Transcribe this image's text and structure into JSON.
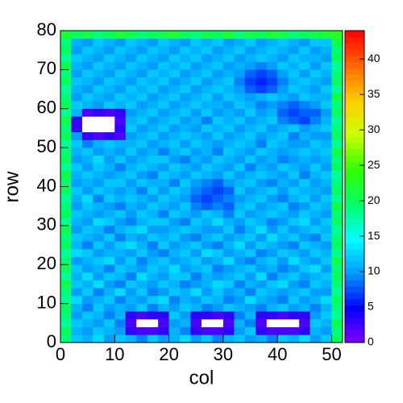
{
  "chart_data": {
    "type": "heatmap",
    "x_label": "col",
    "y_label": "row",
    "xlim": [
      0,
      52
    ],
    "ylim": [
      0,
      80
    ],
    "zlim": [
      0,
      44
    ],
    "xticks": [
      0,
      10,
      20,
      30,
      40,
      50
    ],
    "yticks": [
      0,
      10,
      20,
      30,
      40,
      50,
      60,
      70,
      80
    ],
    "zticks": [
      0,
      5,
      10,
      15,
      20,
      25,
      30,
      35,
      40
    ],
    "palette": [
      "#8000ff",
      "#0000ff",
      "#0099ff",
      "#00ffff",
      "#00ff66",
      "#33ff00",
      "#ccff00",
      "#ffcc00",
      "#ff6600",
      "#ff0000"
    ],
    "values": [
      [
        19,
        12,
        11,
        13,
        10,
        12,
        11,
        9,
        12,
        10,
        11,
        13,
        10,
        12,
        9,
        11,
        12,
        10,
        11,
        9,
        12,
        11,
        13,
        10,
        12,
        20
      ],
      [
        20,
        11,
        10,
        12,
        11,
        10,
        3,
        2,
        2,
        3,
        11,
        9,
        3,
        2,
        2,
        3,
        10,
        12,
        3,
        2,
        2,
        2,
        3,
        11,
        10,
        19
      ],
      [
        18,
        12,
        11,
        10,
        12,
        9,
        2,
        0,
        0,
        2,
        10,
        11,
        2,
        0,
        0,
        2,
        11,
        9,
        2,
        0,
        0,
        0,
        2,
        12,
        11,
        21
      ],
      [
        19,
        10,
        12,
        11,
        9,
        11,
        3,
        2,
        3,
        3,
        12,
        10,
        3,
        3,
        2,
        3,
        9,
        11,
        3,
        3,
        2,
        3,
        3,
        10,
        12,
        18
      ],
      [
        20,
        11,
        9,
        12,
        10,
        11,
        10,
        12,
        9,
        11,
        10,
        12,
        11,
        9,
        10,
        12,
        11,
        10,
        9,
        11,
        12,
        10,
        11,
        9,
        11,
        19
      ],
      [
        18,
        13,
        10,
        11,
        12,
        9,
        11,
        10,
        12,
        13,
        9,
        11,
        10,
        12,
        11,
        9,
        10,
        13,
        11,
        10,
        9,
        12,
        10,
        11,
        13,
        20
      ],
      [
        19,
        10,
        12,
        9,
        11,
        13,
        10,
        12,
        9,
        10,
        12,
        11,
        13,
        10,
        12,
        10,
        11,
        9,
        12,
        11,
        10,
        11,
        12,
        10,
        10,
        18
      ],
      [
        21,
        12,
        11,
        13,
        10,
        9,
        12,
        11,
        10,
        12,
        11,
        9,
        10,
        11,
        13,
        12,
        9,
        11,
        10,
        12,
        13,
        10,
        9,
        12,
        11,
        19
      ],
      [
        18,
        11,
        13,
        10,
        12,
        11,
        9,
        13,
        11,
        10,
        12,
        12,
        9,
        11,
        10,
        11,
        12,
        10,
        13,
        9,
        11,
        12,
        10,
        11,
        12,
        20
      ],
      [
        20,
        12,
        10,
        11,
        9,
        12,
        11,
        10,
        12,
        11,
        13,
        10,
        11,
        12,
        9,
        10,
        11,
        12,
        10,
        11,
        9,
        10,
        12,
        13,
        10,
        19
      ],
      [
        19,
        10,
        11,
        12,
        13,
        10,
        12,
        9,
        11,
        12,
        10,
        11,
        12,
        10,
        11,
        13,
        10,
        9,
        11,
        12,
        10,
        13,
        11,
        10,
        12,
        21
      ],
      [
        18,
        13,
        12,
        10,
        11,
        11,
        10,
        12,
        10,
        9,
        11,
        12,
        10,
        13,
        12,
        10,
        11,
        12,
        9,
        10,
        12,
        11,
        10,
        12,
        11,
        18
      ],
      [
        20,
        11,
        9,
        12,
        10,
        12,
        13,
        11,
        9,
        12,
        10,
        11,
        12,
        10,
        9,
        11,
        13,
        10,
        12,
        11,
        10,
        9,
        12,
        11,
        10,
        20
      ],
      [
        19,
        12,
        11,
        10,
        12,
        9,
        11,
        10,
        12,
        11,
        12,
        10,
        9,
        11,
        12,
        10,
        11,
        12,
        10,
        13,
        11,
        12,
        10,
        9,
        12,
        19
      ],
      [
        21,
        10,
        12,
        11,
        9,
        11,
        12,
        13,
        10,
        10,
        11,
        12,
        11,
        10,
        10,
        12,
        9,
        11,
        13,
        10,
        12,
        10,
        11,
        12,
        11,
        18
      ],
      [
        18,
        11,
        10,
        13,
        12,
        10,
        9,
        11,
        12,
        12,
        10,
        9,
        12,
        11,
        13,
        11,
        10,
        12,
        11,
        9,
        10,
        12,
        13,
        10,
        12,
        20
      ],
      [
        20,
        12,
        11,
        10,
        11,
        12,
        10,
        12,
        11,
        9,
        12,
        11,
        10,
        12,
        11,
        9,
        12,
        10,
        11,
        12,
        11,
        10,
        12,
        11,
        10,
        19
      ],
      [
        19,
        10,
        12,
        11,
        10,
        9,
        11,
        10,
        12,
        11,
        10,
        12,
        9,
        8,
        9,
        8,
        11,
        12,
        10,
        11,
        12,
        9,
        10,
        12,
        11,
        21
      ],
      [
        18,
        11,
        13,
        9,
        12,
        11,
        12,
        11,
        10,
        12,
        11,
        10,
        8,
        7,
        8,
        9,
        10,
        11,
        12,
        10,
        9,
        11,
        12,
        10,
        12,
        18
      ],
      [
        20,
        12,
        10,
        12,
        11,
        10,
        11,
        9,
        12,
        10,
        12,
        11,
        9,
        8,
        7,
        8,
        12,
        10,
        11,
        12,
        10,
        12,
        11,
        11,
        10,
        20
      ],
      [
        19,
        10,
        11,
        10,
        12,
        12,
        10,
        12,
        11,
        11,
        9,
        12,
        10,
        9,
        8,
        10,
        11,
        12,
        10,
        9,
        11,
        10,
        12,
        10,
        11,
        19
      ],
      [
        21,
        11,
        12,
        11,
        10,
        11,
        12,
        10,
        9,
        12,
        11,
        10,
        12,
        11,
        10,
        12,
        10,
        11,
        12,
        11,
        10,
        12,
        9,
        11,
        12,
        18
      ],
      [
        18,
        12,
        10,
        12,
        11,
        9,
        11,
        12,
        11,
        10,
        12,
        11,
        10,
        12,
        11,
        10,
        12,
        9,
        11,
        10,
        12,
        11,
        10,
        12,
        10,
        20
      ],
      [
        20,
        10,
        11,
        13,
        10,
        12,
        10,
        11,
        12,
        12,
        10,
        9,
        11,
        10,
        12,
        11,
        10,
        12,
        10,
        11,
        9,
        10,
        11,
        10,
        11,
        19
      ],
      [
        19,
        11,
        12,
        10,
        11,
        10,
        12,
        10,
        11,
        9,
        11,
        12,
        10,
        11,
        9,
        12,
        11,
        10,
        12,
        11,
        10,
        11,
        12,
        11,
        12,
        21
      ],
      [
        18,
        12,
        9,
        11,
        12,
        11,
        11,
        12,
        10,
        11,
        12,
        10,
        12,
        11,
        10,
        11,
        12,
        11,
        9,
        12,
        11,
        10,
        10,
        12,
        11,
        18
      ],
      [
        20,
        10,
        3,
        2,
        3,
        2,
        10,
        11,
        12,
        10,
        11,
        12,
        11,
        10,
        12,
        10,
        11,
        12,
        10,
        11,
        12,
        9,
        11,
        10,
        10,
        20
      ],
      [
        19,
        3,
        0,
        0,
        0,
        3,
        12,
        10,
        11,
        12,
        10,
        11,
        10,
        12,
        11,
        12,
        10,
        11,
        12,
        10,
        11,
        12,
        10,
        11,
        12,
        19
      ],
      [
        21,
        3,
        0,
        0,
        0,
        2,
        11,
        12,
        10,
        11,
        12,
        10,
        11,
        9,
        12,
        11,
        12,
        10,
        11,
        12,
        9,
        8,
        7,
        9,
        11,
        18
      ],
      [
        18,
        11,
        2,
        3,
        2,
        3,
        10,
        11,
        12,
        10,
        11,
        12,
        10,
        12,
        10,
        11,
        10,
        12,
        10,
        11,
        8,
        7,
        8,
        8,
        10,
        20
      ],
      [
        20,
        12,
        11,
        10,
        12,
        11,
        12,
        10,
        11,
        12,
        10,
        11,
        12,
        11,
        11,
        10,
        12,
        11,
        9,
        10,
        9,
        8,
        9,
        10,
        12,
        19
      ],
      [
        19,
        10,
        12,
        11,
        10,
        12,
        11,
        12,
        10,
        11,
        12,
        10,
        11,
        12,
        10,
        12,
        11,
        10,
        11,
        12,
        11,
        10,
        12,
        11,
        11,
        21
      ],
      [
        18,
        11,
        10,
        12,
        11,
        10,
        12,
        11,
        12,
        10,
        11,
        12,
        10,
        11,
        12,
        11,
        10,
        8,
        7,
        8,
        10,
        12,
        11,
        10,
        12,
        18
      ],
      [
        20,
        12,
        11,
        10,
        12,
        11,
        10,
        12,
        11,
        12,
        10,
        11,
        12,
        10,
        11,
        12,
        9,
        7,
        6,
        7,
        9,
        11,
        12,
        11,
        10,
        20
      ],
      [
        19,
        10,
        12,
        11,
        10,
        12,
        11,
        10,
        12,
        11,
        12,
        10,
        11,
        12,
        10,
        11,
        10,
        8,
        7,
        8,
        10,
        12,
        10,
        12,
        11,
        19
      ],
      [
        21,
        11,
        10,
        12,
        11,
        10,
        12,
        11,
        10,
        12,
        11,
        12,
        10,
        11,
        12,
        10,
        11,
        10,
        9,
        10,
        12,
        11,
        12,
        10,
        12,
        18
      ],
      [
        18,
        12,
        11,
        10,
        12,
        11,
        10,
        12,
        11,
        10,
        12,
        11,
        12,
        10,
        11,
        12,
        10,
        11,
        12,
        11,
        10,
        12,
        11,
        11,
        10,
        20
      ],
      [
        20,
        10,
        12,
        11,
        10,
        12,
        11,
        10,
        12,
        11,
        10,
        12,
        11,
        12,
        10,
        11,
        12,
        10,
        11,
        12,
        11,
        10,
        12,
        10,
        11,
        19
      ],
      [
        19,
        11,
        10,
        12,
        11,
        10,
        12,
        11,
        10,
        12,
        11,
        10,
        12,
        11,
        12,
        10,
        11,
        12,
        10,
        11,
        12,
        11,
        10,
        12,
        12,
        21
      ],
      [
        22,
        20,
        21,
        19,
        20,
        22,
        21,
        19,
        20,
        21,
        22,
        20,
        19,
        21,
        20,
        22,
        19,
        21,
        20,
        22,
        21,
        19,
        20,
        21,
        22,
        23
      ]
    ]
  }
}
